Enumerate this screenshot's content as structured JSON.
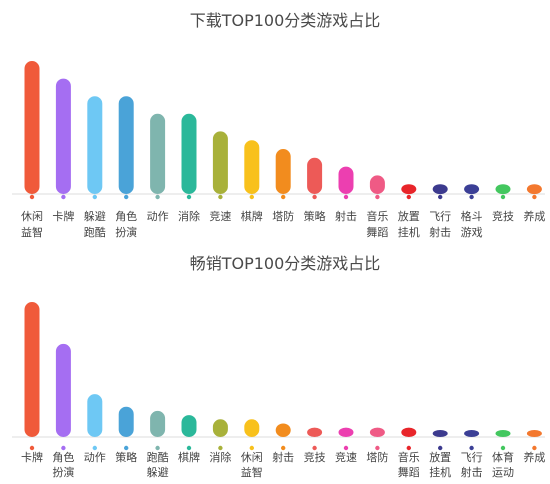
{
  "chart_data": [
    {
      "type": "bar",
      "title": "下载TOP100分类游戏占比",
      "categories": [
        "休闲益智",
        "卡牌",
        "躲避跑酷",
        "角色扮演",
        "动作",
        "消除",
        "竞速",
        "棋牌",
        "塔防",
        "策略",
        "射击",
        "音乐舞蹈",
        "放置挂机",
        "飞行射击",
        "格斗游戏",
        "竞技",
        "养成"
      ],
      "values": [
        15,
        13,
        11,
        11,
        9,
        9,
        7,
        6,
        5,
        4,
        3,
        2,
        1,
        1,
        1,
        1,
        1
      ],
      "colors": [
        "#f05a3a",
        "#a56ef2",
        "#6ec8f4",
        "#4aa3d8",
        "#7fb5ae",
        "#2bb89a",
        "#a8b13a",
        "#f8c11c",
        "#f28c1e",
        "#ed5a57",
        "#ec3fb0",
        "#ef5a85",
        "#e8252a",
        "#3c3a8e",
        "#3b3f96",
        "#43c75f",
        "#f3782e"
      ],
      "ylim": [
        0,
        15
      ]
    },
    {
      "type": "bar",
      "title": "畅销TOP100分类游戏占比",
      "categories": [
        "卡牌",
        "角色扮演",
        "动作",
        "策略",
        "跑酷躲避",
        "棋牌",
        "消除",
        "休闲益智",
        "射击",
        "竞技",
        "竞速",
        "塔防",
        "音乐舞蹈",
        "放置挂机",
        "飞行射击",
        "体育运动",
        "养成"
      ],
      "values": [
        16,
        11,
        5,
        3.5,
        3,
        2.5,
        2,
        2,
        1.5,
        1,
        1,
        1,
        1,
        0.5,
        0.5,
        0.5,
        0.5
      ],
      "colors": [
        "#f05a3a",
        "#a56ef2",
        "#6ec8f4",
        "#4aa3d8",
        "#7fb5ae",
        "#2bb89a",
        "#a8b13a",
        "#f8c11c",
        "#f28c1e",
        "#ed5a57",
        "#ec3fb0",
        "#ef5a85",
        "#e8252a",
        "#3c3a8e",
        "#3b3f96",
        "#43c75f",
        "#f3782e"
      ],
      "ylim": [
        0,
        16
      ]
    }
  ]
}
